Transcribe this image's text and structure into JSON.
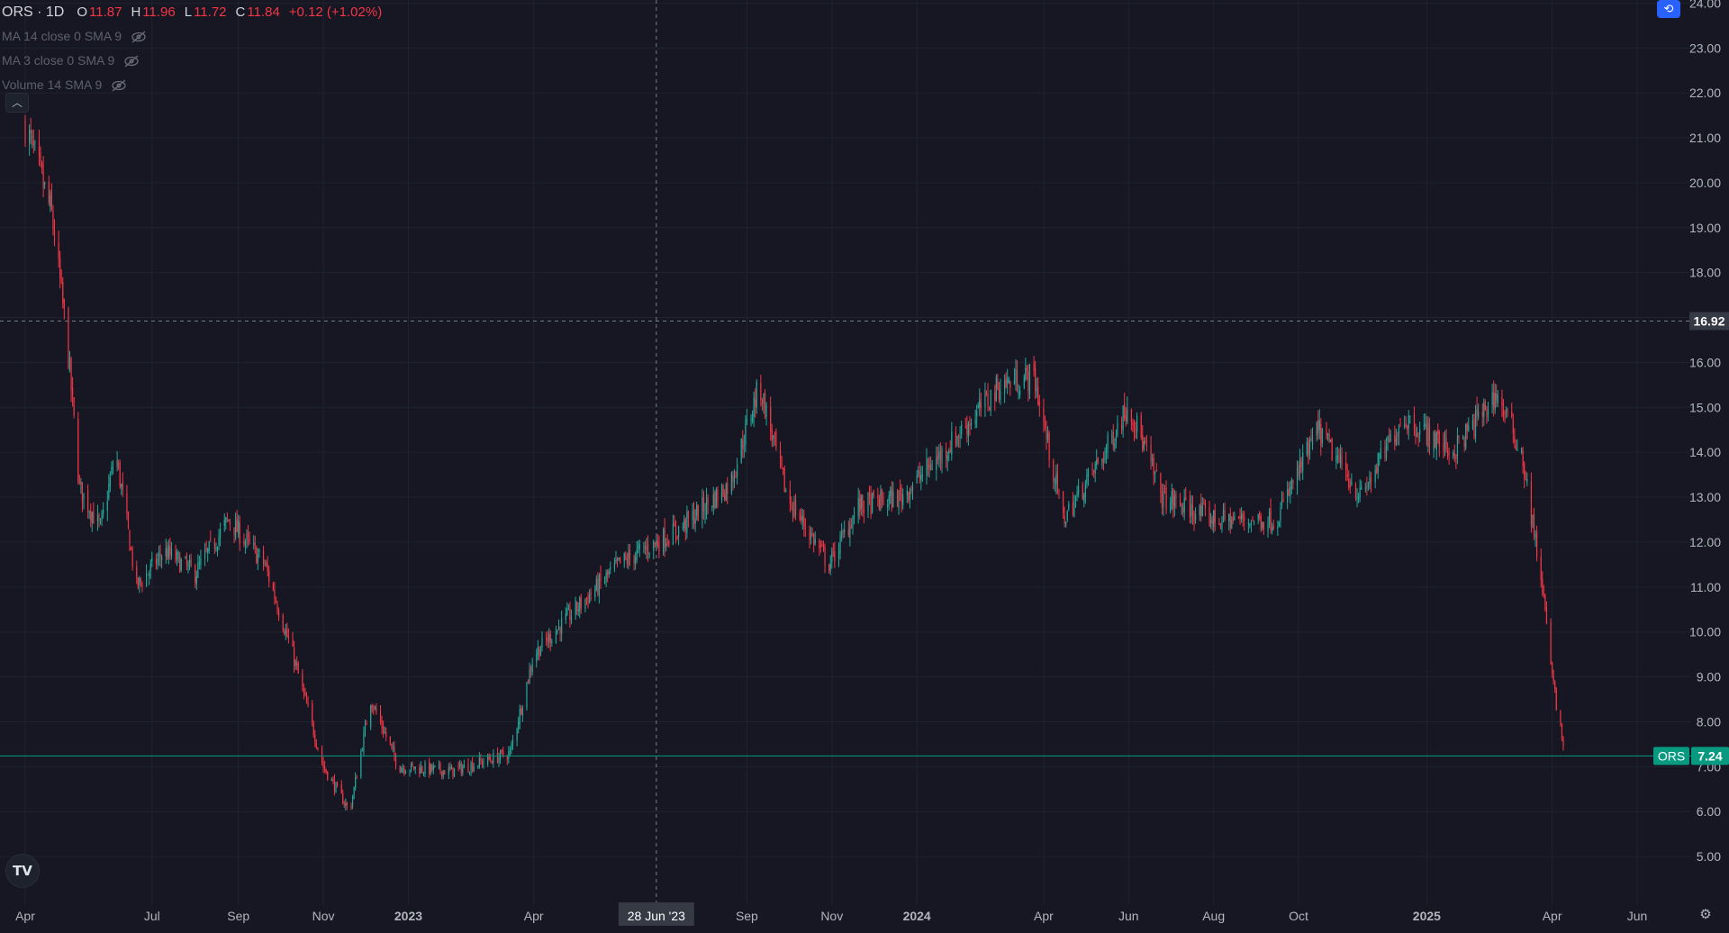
{
  "legend": {
    "symbol": "ORS · 1D",
    "open_label": "O",
    "open_value": "11.87",
    "high_label": "H",
    "high_value": "11.96",
    "low_label": "L",
    "low_value": "11.72",
    "close_label": "C",
    "close_value": "11.84",
    "change": "+0.12 (+1.02%)",
    "indicators": [
      "MA 14 close 0 SMA 9",
      "MA 3 close 0 SMA 9",
      "Volume 14 SMA 9"
    ]
  },
  "crosshair": {
    "price_label": "16.92",
    "date_label": "28 Jun '23"
  },
  "last_price": {
    "symbol": "ORS",
    "value": "7.24"
  },
  "colors": {
    "background": "#161722",
    "up": "#26a69a",
    "down": "#f23645",
    "grid": "#1f2230",
    "price_badge": "#089981"
  },
  "icons": [
    "eye-off-icon",
    "chevron-up-icon",
    "tradingview-logo-icon",
    "scale-toggle-icon",
    "settings-icon"
  ],
  "chart_data": {
    "type": "candlestick",
    "ticker": "ORS",
    "interval": "1D",
    "y_ticks": [
      "5.00",
      "6.00",
      "7.00",
      "8.00",
      "9.00",
      "10.00",
      "11.00",
      "12.00",
      "13.00",
      "14.00",
      "15.00",
      "16.00",
      "17.00",
      "18.00",
      "19.00",
      "20.00",
      "21.00",
      "22.00",
      "23.00",
      "24.00"
    ],
    "ylim": [
      4.5,
      24.2
    ],
    "x_ticks": [
      "Apr",
      "Jul",
      "Sep",
      "Nov",
      "2023",
      "Apr",
      "Sep",
      "Nov",
      "2024",
      "Apr",
      "Jun",
      "Aug",
      "Oct",
      "2025",
      "Apr",
      "Jun"
    ],
    "x_tick_bold": [
      "2023",
      "2024",
      "2025"
    ],
    "date_range": [
      "2022-04",
      "2025-06"
    ],
    "price_path": [
      [
        "2022-04",
        21.3
      ],
      [
        "2022-04-20",
        19.3
      ],
      [
        "2022-05-01",
        16.5
      ],
      [
        "2022-05-10",
        13.2
      ],
      [
        "2022-05-25",
        12.3
      ],
      [
        "2022-06-05",
        14.0
      ],
      [
        "2022-06-20",
        11.0
      ],
      [
        "2022-07-10",
        11.8
      ],
      [
        "2022-08-01",
        11.3
      ],
      [
        "2022-08-25",
        12.5
      ],
      [
        "2022-09-20",
        11.5
      ],
      [
        "2022-10-10",
        9.5
      ],
      [
        "2022-11-01",
        7.0
      ],
      [
        "2022-11-20",
        6.0
      ],
      [
        "2022-12-05",
        8.5
      ],
      [
        "2022-12-25",
        7.0
      ],
      [
        "2023-02-01",
        6.9
      ],
      [
        "2023-03-15",
        7.3
      ],
      [
        "2023-04-01",
        9.5
      ],
      [
        "2023-05-01",
        10.5
      ],
      [
        "2023-06-01",
        11.5
      ],
      [
        "2023-07-15",
        12.3
      ],
      [
        "2023-08-20",
        13.3
      ],
      [
        "2023-09-10",
        15.5
      ],
      [
        "2023-09-30",
        13.0
      ],
      [
        "2023-10-30",
        11.5
      ],
      [
        "2023-11-20",
        12.8
      ],
      [
        "2023-12-20",
        13.0
      ],
      [
        "2024-01-20",
        14.0
      ],
      [
        "2024-03-01",
        15.5
      ],
      [
        "2024-03-25",
        15.7
      ],
      [
        "2024-04-15",
        12.5
      ],
      [
        "2024-05-15",
        14.0
      ],
      [
        "2024-06-01",
        15.1
      ],
      [
        "2024-06-25",
        13.0
      ],
      [
        "2024-08-01",
        12.5
      ],
      [
        "2024-09-15",
        12.5
      ],
      [
        "2024-10-15",
        14.5
      ],
      [
        "2024-11-15",
        13.0
      ],
      [
        "2024-12-15",
        14.8
      ],
      [
        "2025-01-20",
        14.0
      ],
      [
        "2025-02-20",
        15.3
      ],
      [
        "2025-03-10",
        14.0
      ],
      [
        "2025-03-25",
        11.0
      ],
      [
        "2025-04-01",
        9.0
      ],
      [
        "2025-04-10",
        7.24
      ]
    ]
  }
}
